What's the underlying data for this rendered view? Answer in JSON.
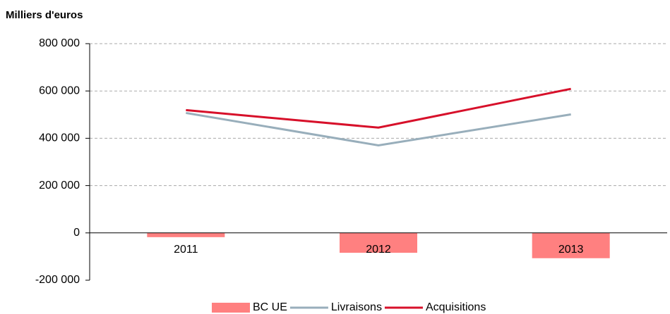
{
  "chart_data": {
    "type": "bar",
    "y_axis_label": "Milliers d'euros",
    "categories": [
      "2011",
      "2012",
      "2013"
    ],
    "series": [
      {
        "name": "BC UE",
        "type": "bar",
        "color": "#ff8080",
        "values": [
          -18000,
          -84000,
          -107000
        ]
      },
      {
        "name": "Livraisons",
        "type": "line",
        "color": "#98aebb",
        "values": [
          507000,
          370000,
          501000
        ]
      },
      {
        "name": "Acquisitions",
        "type": "line",
        "color": "#d7102a",
        "values": [
          519000,
          445000,
          609000
        ]
      }
    ],
    "ylim": [
      -200000,
      800000
    ],
    "yticks": [
      {
        "value": -200000,
        "label": "-200 000"
      },
      0,
      {
        "value": 200000,
        "label": "200 000"
      },
      {
        "value": 400000,
        "label": "400 000"
      },
      {
        "value": 600000,
        "label": "600 000"
      },
      {
        "value": 800000,
        "label": "800 000"
      }
    ],
    "grid": true,
    "legend": "bottom"
  }
}
